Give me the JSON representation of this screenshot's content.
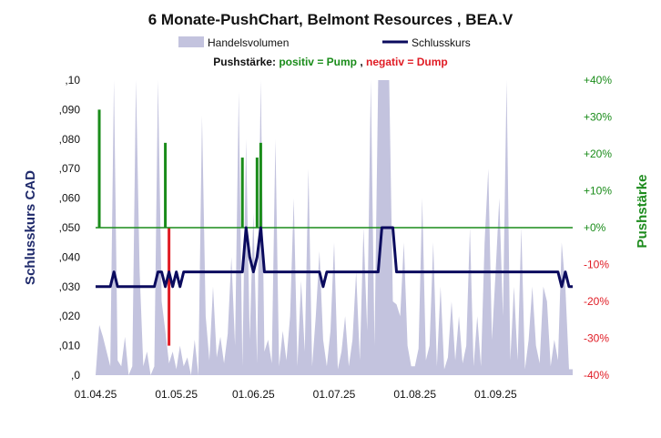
{
  "chart_data": {
    "type": "line",
    "title": "6 Monate-PushChart,  Belmont Resources , BEA.V",
    "legend": {
      "volume_label": "Handelsvolumen",
      "close_label": "Schlusskurs",
      "placement": "top-center"
    },
    "push_caption": {
      "prefix": "Pushstärke: ",
      "positive": "positiv = Pump",
      "separator": ", ",
      "negative": "negativ = Dump"
    },
    "ylabel_left": "Schlusskurs CAD",
    "ylabel_right": "Pushstärke",
    "ylim_left": [
      0,
      0.1
    ],
    "ylim_right": [
      -40,
      40
    ],
    "yticks_left": [
      ",0",
      ",010",
      ",020",
      ",030",
      ",040",
      ",050",
      ",060",
      ",070",
      ",080",
      ",090",
      ",10"
    ],
    "yticks_right": [
      "-40%",
      "-30%",
      "-20%",
      "-10%",
      "+0%",
      "+10%",
      "+20%",
      "+30%",
      "+40%"
    ],
    "xticks": [
      "01.04.25",
      "01.05.25",
      "01.06.25",
      "01.07.25",
      "01.08.25",
      "01.09.25"
    ],
    "x_count": 131,
    "xtick_index": [
      0,
      22,
      43,
      65,
      87,
      109
    ],
    "colors": {
      "volume": "#c3c3de",
      "close": "#0b0b5e",
      "push_positive": "#1a8c1a",
      "push_negative": "#e01b24",
      "zero_line": "#1a8c1a",
      "left_axis_title": "#1f2a6b",
      "right_axis_title": "#1e8c1e",
      "right_ticks_positive": "#1a8c1a",
      "right_ticks_negative": "#e01b24"
    },
    "grid": false,
    "close_series": [
      [
        0,
        0.03
      ],
      [
        4,
        0.03
      ],
      [
        5,
        0.035
      ],
      [
        6,
        0.03
      ],
      [
        16,
        0.03
      ],
      [
        17,
        0.035
      ],
      [
        18,
        0.035
      ],
      [
        19,
        0.03
      ],
      [
        20,
        0.035
      ],
      [
        21,
        0.03
      ],
      [
        22,
        0.035
      ],
      [
        23,
        0.03
      ],
      [
        24,
        0.035
      ],
      [
        40,
        0.035
      ],
      [
        41,
        0.05
      ],
      [
        42,
        0.04
      ],
      [
        43,
        0.035
      ],
      [
        44,
        0.04
      ],
      [
        45,
        0.05
      ],
      [
        46,
        0.035
      ],
      [
        61,
        0.035
      ],
      [
        62,
        0.03
      ],
      [
        63,
        0.035
      ],
      [
        77,
        0.035
      ],
      [
        78,
        0.05
      ],
      [
        81,
        0.05
      ],
      [
        82,
        0.035
      ],
      [
        126,
        0.035
      ],
      [
        127,
        0.03
      ],
      [
        128,
        0.035
      ],
      [
        129,
        0.03
      ],
      [
        130,
        0.03
      ]
    ],
    "volume_series": [
      [
        0,
        0.0
      ],
      [
        1,
        0.017
      ],
      [
        2,
        0.013
      ],
      [
        3,
        0.008
      ],
      [
        4,
        0.003
      ],
      [
        5,
        0.1
      ],
      [
        6,
        0.005
      ],
      [
        7,
        0.003
      ],
      [
        8,
        0.013
      ],
      [
        9,
        0.0
      ],
      [
        10,
        0.003
      ],
      [
        11,
        0.1
      ],
      [
        12,
        0.035
      ],
      [
        13,
        0.003
      ],
      [
        14,
        0.008
      ],
      [
        15,
        0.0
      ],
      [
        16,
        0.003
      ],
      [
        17,
        0.1
      ],
      [
        18,
        0.025
      ],
      [
        19,
        0.015
      ],
      [
        20,
        0.004
      ],
      [
        21,
        0.008
      ],
      [
        22,
        0.002
      ],
      [
        23,
        0.01
      ],
      [
        24,
        0.003
      ],
      [
        25,
        0.006
      ],
      [
        26,
        0.0
      ],
      [
        27,
        0.012
      ],
      [
        28,
        0.0
      ],
      [
        29,
        0.088
      ],
      [
        30,
        0.02
      ],
      [
        31,
        0.005
      ],
      [
        32,
        0.03
      ],
      [
        33,
        0.006
      ],
      [
        34,
        0.013
      ],
      [
        35,
        0.004
      ],
      [
        36,
        0.014
      ],
      [
        37,
        0.04
      ],
      [
        38,
        0.01
      ],
      [
        39,
        0.096
      ],
      [
        40,
        0.003
      ],
      [
        41,
        0.08
      ],
      [
        42,
        0.012
      ],
      [
        43,
        0.055
      ],
      [
        44,
        0.004
      ],
      [
        45,
        0.1
      ],
      [
        46,
        0.008
      ],
      [
        47,
        0.012
      ],
      [
        48,
        0.004
      ],
      [
        49,
        0.08
      ],
      [
        50,
        0.003
      ],
      [
        51,
        0.015
      ],
      [
        52,
        0.005
      ],
      [
        53,
        0.02
      ],
      [
        54,
        0.06
      ],
      [
        55,
        0.003
      ],
      [
        56,
        0.032
      ],
      [
        57,
        0.008
      ],
      [
        58,
        0.07
      ],
      [
        59,
        0.003
      ],
      [
        60,
        0.02
      ],
      [
        61,
        0.042
      ],
      [
        62,
        0.012
      ],
      [
        63,
        0.003
      ],
      [
        64,
        0.015
      ],
      [
        65,
        0.045
      ],
      [
        66,
        0.002
      ],
      [
        67,
        0.008
      ],
      [
        68,
        0.02
      ],
      [
        69,
        0.003
      ],
      [
        70,
        0.012
      ],
      [
        71,
        0.035
      ],
      [
        72,
        0.005
      ],
      [
        73,
        0.05
      ],
      [
        74,
        0.015
      ],
      [
        75,
        0.1
      ],
      [
        76,
        0.01
      ],
      [
        77,
        0.1
      ],
      [
        78,
        0.1
      ],
      [
        79,
        0.1
      ],
      [
        80,
        0.1
      ],
      [
        81,
        0.025
      ],
      [
        82,
        0.024
      ],
      [
        83,
        0.02
      ],
      [
        84,
        0.045
      ],
      [
        85,
        0.01
      ],
      [
        86,
        0.003
      ],
      [
        87,
        0.003
      ],
      [
        88,
        0.009
      ],
      [
        89,
        0.06
      ],
      [
        90,
        0.005
      ],
      [
        91,
        0.01
      ],
      [
        92,
        0.045
      ],
      [
        93,
        0.003
      ],
      [
        94,
        0.03
      ],
      [
        95,
        0.002
      ],
      [
        96,
        0.006
      ],
      [
        97,
        0.025
      ],
      [
        98,
        0.005
      ],
      [
        99,
        0.02
      ],
      [
        100,
        0.004
      ],
      [
        101,
        0.01
      ],
      [
        102,
        0.05
      ],
      [
        103,
        0.003
      ],
      [
        104,
        0.02
      ],
      [
        105,
        0.003
      ],
      [
        106,
        0.045
      ],
      [
        107,
        0.07
      ],
      [
        108,
        0.012
      ],
      [
        109,
        0.035
      ],
      [
        110,
        0.06
      ],
      [
        111,
        0.02
      ],
      [
        112,
        0.1
      ],
      [
        113,
        0.005
      ],
      [
        114,
        0.03
      ],
      [
        115,
        0.005
      ],
      [
        116,
        0.05
      ],
      [
        117,
        0.002
      ],
      [
        118,
        0.012
      ],
      [
        119,
        0.03
      ],
      [
        120,
        0.01
      ],
      [
        121,
        0.004
      ],
      [
        122,
        0.03
      ],
      [
        123,
        0.025
      ],
      [
        124,
        0.003
      ],
      [
        125,
        0.012
      ],
      [
        126,
        0.005
      ],
      [
        127,
        0.045
      ],
      [
        128,
        0.03
      ],
      [
        129,
        0.002
      ],
      [
        130,
        0.002
      ]
    ],
    "push_bars": [
      {
        "index": 1,
        "value": 32
      },
      {
        "index": 19,
        "value": 23
      },
      {
        "index": 20,
        "value": -32
      },
      {
        "index": 40,
        "value": 19
      },
      {
        "index": 44,
        "value": 19
      },
      {
        "index": 45,
        "value": 23
      }
    ]
  }
}
